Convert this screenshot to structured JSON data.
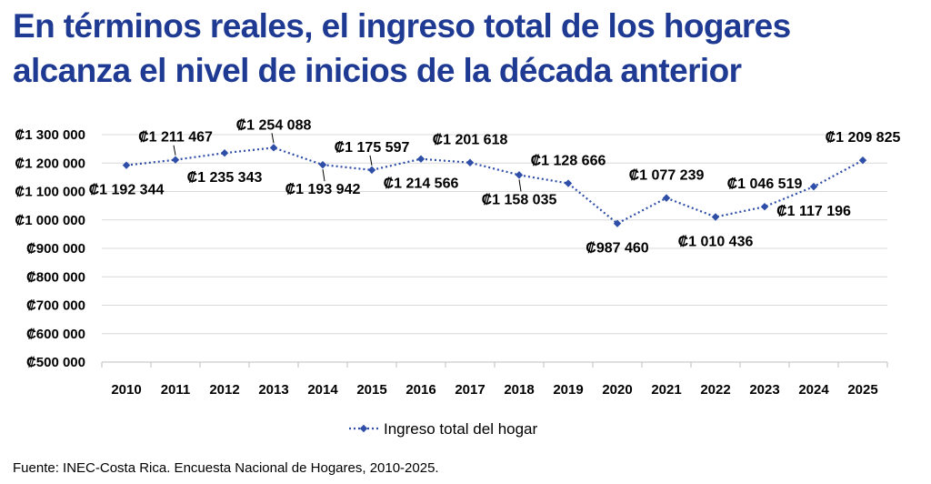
{
  "title_line1": "En términos reales, el ingreso total de los hogares",
  "title_line2": "alcanza el nivel de inicios de la década anterior",
  "source": "Fuente: INEC-Costa Rica. Encuesta Nacional de Hogares, 2010-2025.",
  "chart_data": {
    "type": "line",
    "categories": [
      "2010",
      "2011",
      "2012",
      "2013",
      "2014",
      "2015",
      "2016",
      "2017",
      "2018",
      "2019",
      "2020",
      "2021",
      "2022",
      "2023",
      "2024",
      "2025"
    ],
    "series": [
      {
        "name": "Ingreso total del hogar",
        "color": "#2e4ea8",
        "values": [
          1192344,
          1211467,
          1235343,
          1254088,
          1193942,
          1175597,
          1214566,
          1201618,
          1158035,
          1128666,
          987460,
          1077239,
          1010436,
          1046519,
          1117196,
          1209825
        ]
      }
    ],
    "data_labels": [
      "₡1 192 344",
      "₡1 211 467",
      "₡1 235 343",
      "₡1 254 088",
      "₡1 193 942",
      "₡1 175 597",
      "₡1 214 566",
      "₡1 201 618",
      "₡1 158 035",
      "₡1 128 666",
      "₡987 460",
      "₡1 077 239",
      "₡1 010 436",
      "₡1 046 519",
      "₡1 117 196",
      "₡1 209 825"
    ],
    "label_positions": [
      "below",
      "above",
      "below",
      "above",
      "below",
      "above",
      "below",
      "above",
      "below",
      "above",
      "below",
      "above",
      "below",
      "above",
      "below",
      "above"
    ],
    "y_ticks": [
      500000,
      600000,
      700000,
      800000,
      900000,
      1000000,
      1100000,
      1200000,
      1300000
    ],
    "y_tick_labels": [
      "₡500 000",
      "₡600 000",
      "₡700 000",
      "₡800 000",
      "₡900 000",
      "₡1 000 000",
      "₡1 100 000",
      "₡1 200 000",
      "₡1 300 000"
    ],
    "ylim": [
      500000,
      1300000
    ],
    "grid": true,
    "legend_position": "bottom",
    "line_style": "dotted"
  }
}
